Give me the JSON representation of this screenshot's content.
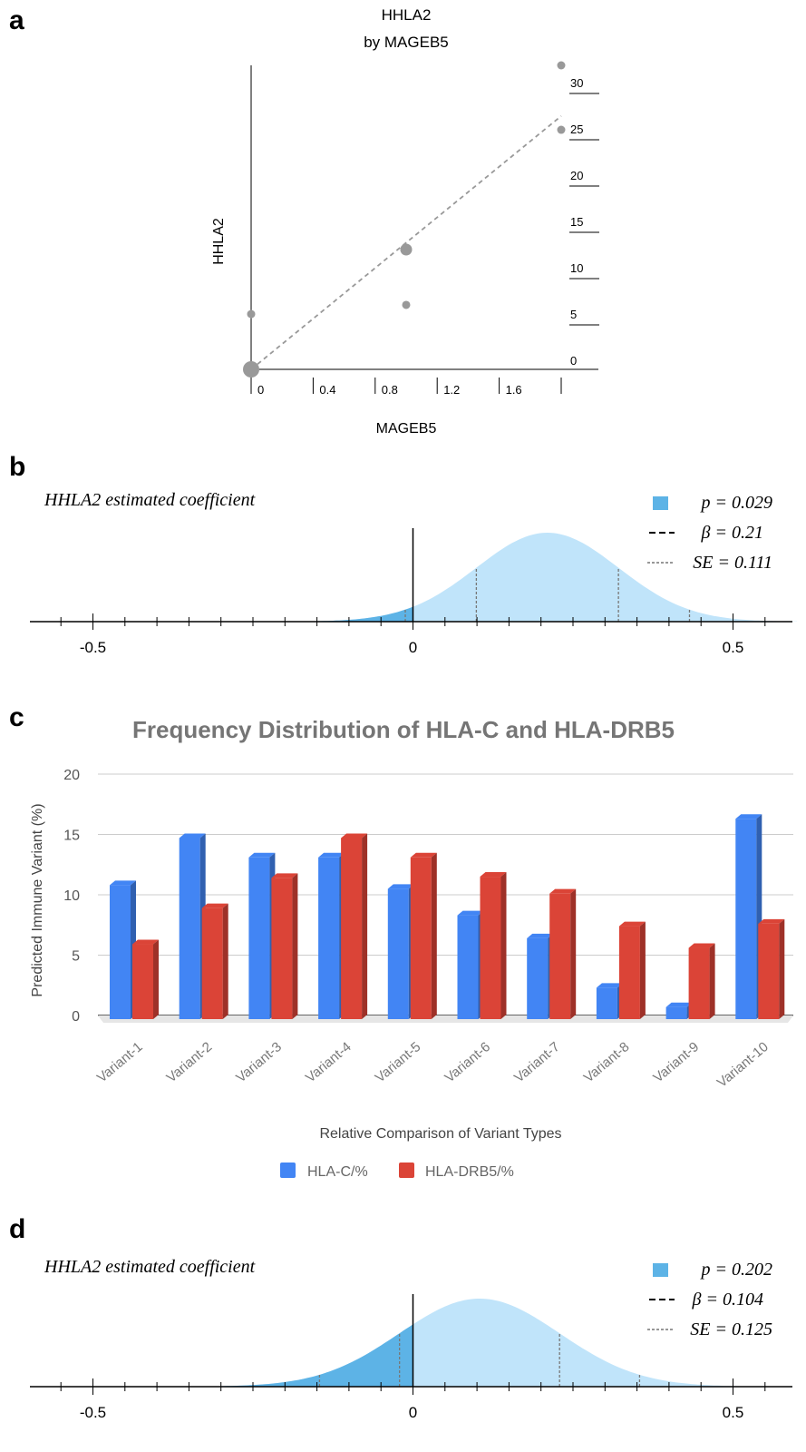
{
  "panels": {
    "a": "a",
    "b": "b",
    "c": "c",
    "d": "d"
  },
  "chart_data": [
    {
      "panel": "a",
      "type": "scatter",
      "title": "HHLA2",
      "subtitle": "by MAGEB5",
      "xlabel": "MAGEB5",
      "ylabel": "HHLA2",
      "xticks": [
        "0",
        "0.4",
        "0.8",
        "1.2",
        "1.6"
      ],
      "yticks": [
        "0",
        "5",
        "10",
        "15",
        "20",
        "25",
        "30"
      ],
      "xlim": [
        0,
        2.0
      ],
      "ylim": [
        0,
        33
      ],
      "points": [
        {
          "x": 0,
          "y": 0,
          "size": "large"
        },
        {
          "x": 0,
          "y": 6,
          "size": "small"
        },
        {
          "x": 1.0,
          "y": 13,
          "size": "medium"
        },
        {
          "x": 1.0,
          "y": 7,
          "size": "small"
        },
        {
          "x": 2.0,
          "y": 33,
          "size": "small"
        },
        {
          "x": 2.0,
          "y": 26,
          "size": "small"
        }
      ],
      "trendline": {
        "x": [
          0,
          2.0
        ],
        "y": [
          0,
          27.5
        ],
        "style": "dashed"
      }
    },
    {
      "panel": "b",
      "type": "area",
      "title": "HHLA2 estimated coefficient",
      "xticks": [
        "-0.5",
        "0",
        "0.5"
      ],
      "xlim": [
        -0.6,
        0.6
      ],
      "mean": 0.21,
      "se": 0.111,
      "legend": [
        "p = 0.029",
        "β = 0.21",
        "SE = 0.111"
      ],
      "colors": {
        "fill": "#c0e4fa",
        "tail": "#5db3e6"
      }
    },
    {
      "panel": "c",
      "type": "bar",
      "title": "Frequency Distribution of HLA-C and HLA-DRB5",
      "xlabel": "Relative Comparison of Variant Types",
      "ylabel": "Predicted Immune Variant (%)",
      "ylim": [
        0,
        20
      ],
      "yticks": [
        "0",
        "5",
        "10",
        "15",
        "20"
      ],
      "categories": [
        "Variant-1",
        "Variant-2",
        "Variant-3",
        "Variant-4",
        "Variant-5",
        "Variant-6",
        "Variant-7",
        "Variant-8",
        "Variant-9",
        "Variant-10"
      ],
      "series": [
        {
          "name": "HLA-C/%",
          "color": "#4285f4",
          "values": [
            10.8,
            14.7,
            13.1,
            13.1,
            10.5,
            8.3,
            6.4,
            2.3,
            0.7,
            16.3
          ]
        },
        {
          "name": "HLA-DRB5/%",
          "color": "#db4437",
          "values": [
            5.9,
            8.9,
            11.4,
            14.7,
            13.1,
            11.5,
            10.1,
            7.4,
            5.6,
            7.6
          ]
        }
      ],
      "legend_position": "bottom"
    },
    {
      "panel": "d",
      "type": "area",
      "title": "HHLA2 estimated coefficient",
      "xticks": [
        "-0.5",
        "0",
        "0.5"
      ],
      "xlim": [
        -0.6,
        0.6
      ],
      "mean": 0.104,
      "se": 0.125,
      "legend": [
        "p = 0.202",
        "β = 0.104",
        "SE = 0.125"
      ],
      "colors": {
        "fill": "#c0e4fa",
        "tail": "#5db3e6"
      }
    }
  ]
}
